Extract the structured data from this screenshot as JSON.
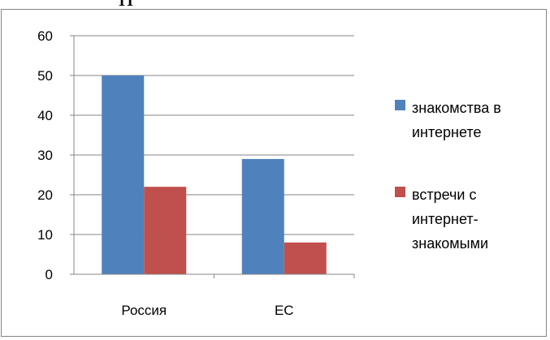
{
  "cropped_heading": "п",
  "chart_data": {
    "type": "bar",
    "categories": [
      "Россия",
      "ЕС"
    ],
    "series": [
      {
        "name": "знакомства в интернете",
        "values": [
          50,
          29
        ],
        "color": "#4F81BD"
      },
      {
        "name": "встречи с интернет-знакомыми",
        "values": [
          22,
          8
        ],
        "color": "#C0504D"
      }
    ],
    "ylim": [
      0,
      60
    ],
    "yticks": [
      0,
      10,
      20,
      30,
      40,
      50,
      60
    ],
    "grid": true,
    "legend_position": "right",
    "legend_lines": [
      [
        "знакомства в",
        "интернете"
      ],
      [
        "встречи с",
        "интернет-",
        "знакомыми"
      ]
    ]
  }
}
